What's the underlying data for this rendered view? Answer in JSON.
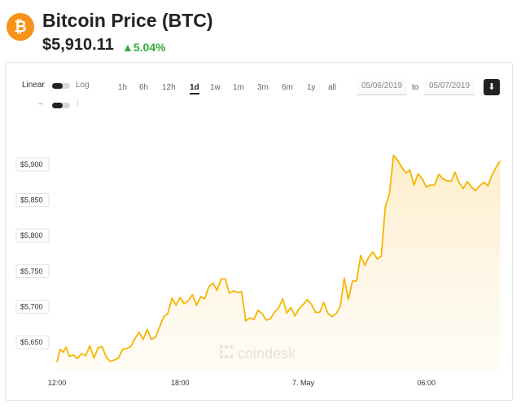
{
  "header": {
    "logo_symbol": "₿",
    "title": "Bitcoin Price (BTC)",
    "price": "$5,910.11",
    "change": "▲5.04%",
    "change_color": "#2eae34",
    "brand_color": "#f7931a"
  },
  "controls": {
    "scale_linear": "Linear",
    "scale_log": "Log",
    "ranges": [
      "1h",
      "6h",
      "12h",
      "1d",
      "1w",
      "1m",
      "3m",
      "6m",
      "1y",
      "all"
    ],
    "active_range": "1d",
    "date_from": "05/06/2019",
    "to_label": "to",
    "date_to": "05/07/2019",
    "download_icon": "download-arrow-icon",
    "line_icon": "~",
    "candle_icon": "⫶"
  },
  "chart_data": {
    "type": "area",
    "line_color": "#f5b500",
    "fill_color": "#fdf2dc",
    "ylim": [
      5610,
      5925
    ],
    "ytick_labels": [
      "$5,900",
      "$5,850",
      "$5,800",
      "$5,750",
      "$5,700",
      "$5,650"
    ],
    "yticks": [
      5900,
      5850,
      5800,
      5750,
      5700,
      5650
    ],
    "x_range_hours": [
      0,
      21.7
    ],
    "xticks": [
      0,
      6,
      12,
      18
    ],
    "xtick_labels": [
      "12:00",
      "18:00",
      "7. May",
      "06:00"
    ],
    "series": [
      {
        "x": [
          0.0,
          0.15,
          0.3,
          0.45,
          0.6,
          0.8,
          1.0,
          1.2,
          1.4,
          1.6,
          1.8,
          2.0,
          2.2,
          2.4,
          2.6,
          2.8,
          3.0,
          3.2,
          3.4,
          3.6,
          3.8,
          4.0,
          4.2,
          4.4,
          4.6,
          4.8,
          5.0,
          5.2,
          5.4,
          5.6,
          5.8,
          6.0,
          6.2,
          6.4,
          6.6,
          6.8,
          7.0,
          7.2,
          7.4,
          7.6,
          7.8,
          8.0,
          8.2,
          8.4,
          8.6,
          8.8,
          9.0,
          9.2,
          9.4,
          9.6,
          9.8,
          10.0,
          10.2,
          10.4,
          10.6,
          10.8,
          11.0,
          11.2,
          11.4,
          11.6,
          11.8,
          12.0,
          12.2,
          12.4,
          12.6,
          12.8,
          13.0,
          13.2,
          13.4,
          13.6,
          13.8,
          14.0,
          14.2,
          14.4,
          14.6,
          14.8,
          15.0,
          15.2,
          15.4,
          15.6,
          15.8,
          16.0,
          16.2,
          16.4,
          16.6,
          16.8,
          17.0,
          17.2,
          17.4,
          17.6,
          17.8,
          18.0,
          18.2,
          18.4,
          18.6,
          18.8,
          19.0,
          19.2,
          19.4,
          19.6,
          19.8,
          20.0,
          20.2,
          20.4,
          20.6,
          20.8,
          21.0,
          21.2,
          21.4,
          21.6
        ],
        "values": [
          5622,
          5640,
          5636,
          5643,
          5630,
          5632,
          5627,
          5634,
          5631,
          5645,
          5628,
          5642,
          5644,
          5629,
          5623,
          5625,
          5628,
          5640,
          5641,
          5644,
          5655,
          5664,
          5654,
          5668,
          5654,
          5657,
          5671,
          5686,
          5690,
          5712,
          5702,
          5713,
          5704,
          5708,
          5717,
          5702,
          5714,
          5711,
          5728,
          5733,
          5723,
          5739,
          5739,
          5719,
          5722,
          5720,
          5721,
          5680,
          5684,
          5682,
          5695,
          5690,
          5681,
          5683,
          5692,
          5698,
          5711,
          5691,
          5699,
          5687,
          5697,
          5703,
          5710,
          5703,
          5692,
          5692,
          5706,
          5691,
          5686,
          5690,
          5700,
          5740,
          5710,
          5736,
          5736,
          5772,
          5758,
          5770,
          5777,
          5767,
          5771,
          5840,
          5859,
          5913,
          5906,
          5896,
          5888,
          5892,
          5871,
          5887,
          5880,
          5868,
          5871,
          5871,
          5886,
          5880,
          5877,
          5876,
          5889,
          5874,
          5866,
          5876,
          5868,
          5863,
          5870,
          5875,
          5870,
          5885,
          5896,
          5905
        ]
      }
    ],
    "watermark": "coindesk"
  }
}
